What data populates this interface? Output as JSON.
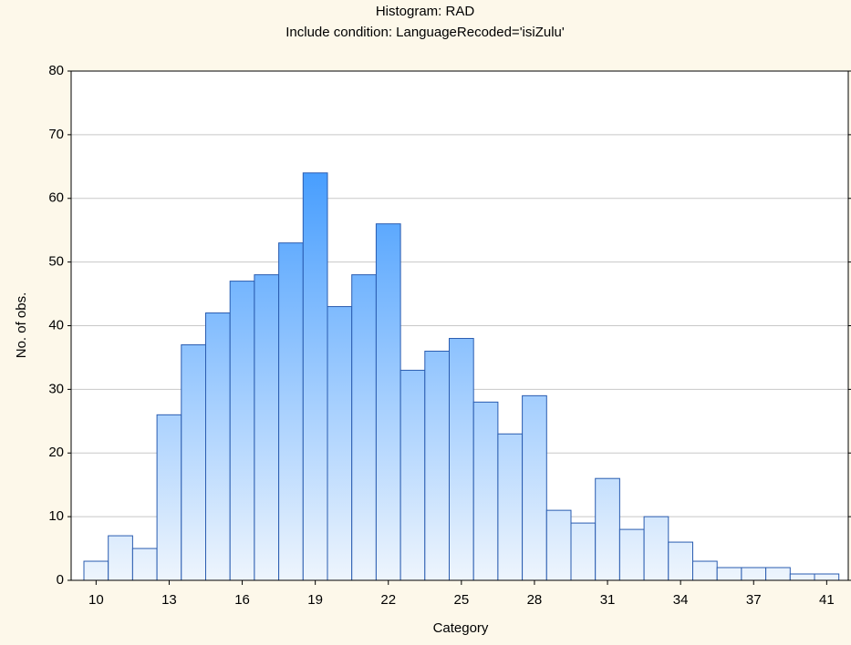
{
  "chart_data": {
    "type": "histogram",
    "title": "Histogram: RAD",
    "subtitle": "Include condition: LanguageRecoded='isiZulu'",
    "x_label": "Category",
    "y_label": "No. of obs.",
    "categories": [
      "10",
      null,
      null,
      "13",
      null,
      null,
      "16",
      null,
      null,
      "19",
      null,
      null,
      "22",
      null,
      null,
      "25",
      null,
      null,
      "28",
      null,
      null,
      "31",
      null,
      null,
      "34",
      null,
      null,
      "37",
      null,
      null,
      "41"
    ],
    "values": [
      3,
      7,
      5,
      26,
      37,
      42,
      47,
      48,
      53,
      64,
      43,
      48,
      56,
      33,
      36,
      38,
      28,
      23,
      29,
      11,
      9,
      16,
      8,
      10,
      6,
      3,
      2,
      2,
      2,
      1,
      1
    ],
    "color": "#1e88ff",
    "edge_color": "#2a5cb0",
    "ylim": [
      0,
      80
    ],
    "yticks": [
      0,
      10,
      20,
      30,
      40,
      50,
      60,
      70,
      80
    ],
    "grid": true
  }
}
